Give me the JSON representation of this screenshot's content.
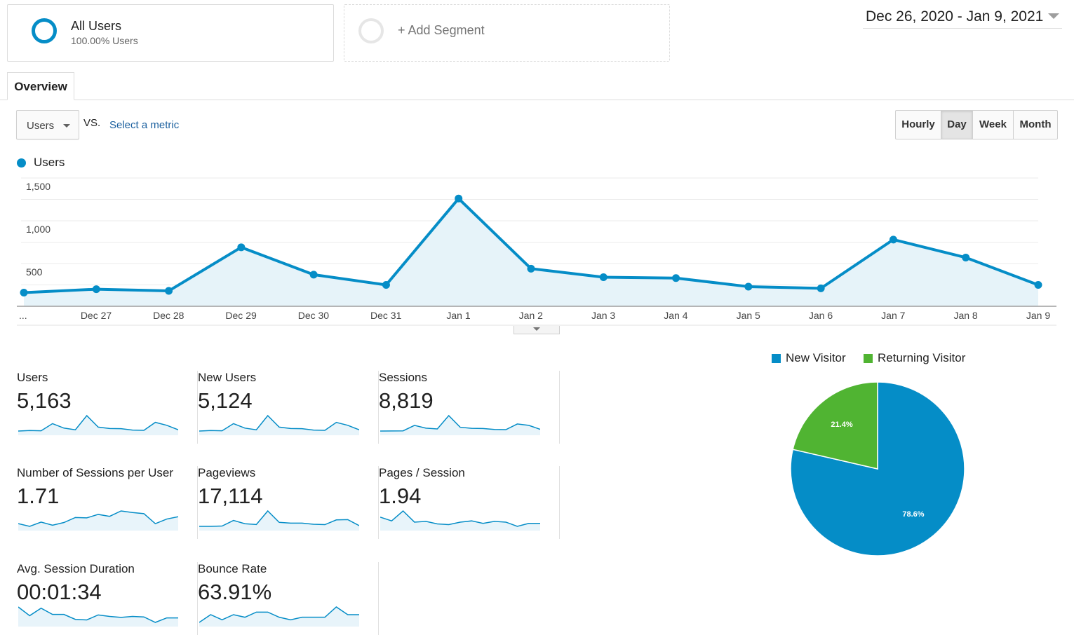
{
  "segments": {
    "all_users": {
      "title": "All Users",
      "subtitle": "100.00% Users",
      "color": "#058dc7"
    },
    "add_segment": {
      "label": "+ Add Segment"
    }
  },
  "date_range": "Dec 26, 2020 - Jan 9, 2021",
  "tabs": {
    "overview": "Overview"
  },
  "metric_selector": {
    "selected": "Users",
    "vs_label": "VS.",
    "select_metric_link": "Select a metric"
  },
  "granularity": {
    "buttons": [
      "Hourly",
      "Day",
      "Week",
      "Month"
    ],
    "active": "Day"
  },
  "colors": {
    "primary": "#058dc7",
    "secondary": "#50b432",
    "area_fill": "#e6f3f9",
    "sparkline_fill": "#e8f4fa"
  },
  "chart_data": {
    "type": "line",
    "series": [
      {
        "name": "Users",
        "x": [
          "Dec 26",
          "Dec 27",
          "Dec 28",
          "Dec 29",
          "Dec 30",
          "Dec 31",
          "Jan 1",
          "Jan 2",
          "Jan 3",
          "Jan 4",
          "Jan 5",
          "Jan 6",
          "Jan 7",
          "Jan 8",
          "Jan 9"
        ],
        "values": [
          160,
          200,
          180,
          690,
          370,
          250,
          1260,
          440,
          340,
          330,
          230,
          210,
          780,
          570,
          250
        ]
      }
    ],
    "x_tick_labels": [
      "...",
      "Dec 27",
      "Dec 28",
      "Dec 29",
      "Dec 30",
      "Dec 31",
      "Jan 1",
      "Jan 2",
      "Jan 3",
      "Jan 4",
      "Jan 5",
      "Jan 6",
      "Jan 7",
      "Jan 8",
      "Jan 9"
    ],
    "y_ticks": [
      "1,500",
      "1,000",
      "500"
    ],
    "y_tick_values": [
      1500,
      1000,
      500
    ],
    "ylim": [
      0,
      1500
    ],
    "grid": true
  },
  "scorecards": [
    {
      "label": "Users",
      "value": "5,163",
      "spark": [
        160,
        200,
        180,
        690,
        370,
        250,
        1260,
        440,
        340,
        330,
        230,
        210,
        780,
        570,
        250
      ]
    },
    {
      "label": "New Users",
      "value": "5,124",
      "spark": [
        158,
        198,
        178,
        685,
        366,
        248,
        1252,
        436,
        336,
        328,
        228,
        208,
        772,
        566,
        248
      ]
    },
    {
      "label": "Sessions",
      "value": "8,819",
      "spark": [
        290,
        300,
        310,
        900,
        600,
        520,
        1950,
        700,
        580,
        560,
        460,
        440,
        1050,
        900,
        480
      ]
    },
    {
      "label": "Number of Sessions per User",
      "value": "1.71",
      "spark": [
        1.62,
        1.55,
        1.66,
        1.58,
        1.65,
        1.78,
        1.77,
        1.86,
        1.81,
        1.95,
        1.91,
        1.88,
        1.62,
        1.74,
        1.8
      ]
    },
    {
      "label": "Pageviews",
      "value": "17,114",
      "spark": [
        560,
        560,
        620,
        1650,
        1050,
        900,
        3400,
        1300,
        1150,
        1150,
        950,
        880,
        1750,
        1800,
        700
      ]
    },
    {
      "label": "Pages / Session",
      "value": "1.94",
      "spark": [
        2.25,
        2.1,
        2.5,
        2.05,
        2.08,
        1.98,
        1.95,
        2.05,
        2.1,
        2.0,
        2.08,
        2.05,
        1.88,
        2.0,
        2.0
      ]
    },
    {
      "label": "Avg. Session Duration",
      "value": "00:01:34",
      "spark": [
        130,
        95,
        125,
        100,
        100,
        80,
        78,
        98,
        92,
        88,
        92,
        90,
        68,
        86,
        86
      ]
    },
    {
      "label": "Bounce Rate",
      "value": "63.91%",
      "spark": [
        62,
        65,
        63,
        65,
        64,
        66,
        66,
        64,
        63,
        64,
        64,
        64,
        68,
        65,
        65
      ]
    }
  ],
  "pie": {
    "chart_data": {
      "type": "pie",
      "labels": [
        "New Visitor",
        "Returning Visitor"
      ],
      "values": [
        78.6,
        21.4
      ],
      "data_labels": [
        "78.6%",
        "21.4%"
      ],
      "colors": [
        "#058dc7",
        "#50b432"
      ],
      "legend": "top"
    }
  }
}
